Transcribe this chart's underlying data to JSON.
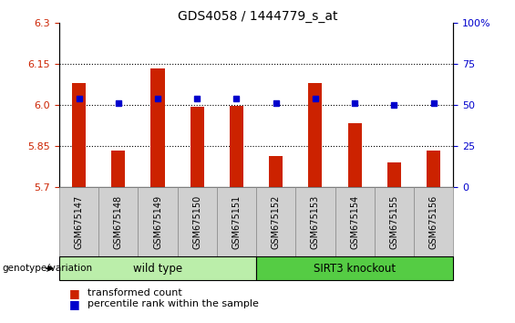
{
  "title": "GDS4058 / 1444779_s_at",
  "samples": [
    "GSM675147",
    "GSM675148",
    "GSM675149",
    "GSM675150",
    "GSM675151",
    "GSM675152",
    "GSM675153",
    "GSM675154",
    "GSM675155",
    "GSM675156"
  ],
  "red_values": [
    6.08,
    5.835,
    6.133,
    5.995,
    5.997,
    5.815,
    6.08,
    5.935,
    5.79,
    5.835
  ],
  "blue_values": [
    54,
    51,
    54,
    54,
    54,
    51,
    54,
    51,
    50,
    51
  ],
  "ylim_left": [
    5.7,
    6.3
  ],
  "ylim_right": [
    0,
    100
  ],
  "yticks_left": [
    5.7,
    5.85,
    6.0,
    6.15,
    6.3
  ],
  "yticks_right": [
    0,
    25,
    50,
    75,
    100
  ],
  "grid_lines": [
    5.85,
    6.0,
    6.15
  ],
  "wild_type_count": 5,
  "sirt3_ko_count": 5,
  "bar_color": "#cc2200",
  "dot_color": "#0000cc",
  "wild_type_color": "#bbeeaa",
  "sirt3_color": "#55cc44",
  "label_color_left": "#cc2200",
  "label_color_right": "#0000cc",
  "bar_width": 0.35,
  "legend_red": "transformed count",
  "legend_blue": "percentile rank within the sample",
  "genotype_label": "genotype/variation",
  "wild_type_label": "wild type",
  "sirt3_label": "SIRT3 knockout"
}
